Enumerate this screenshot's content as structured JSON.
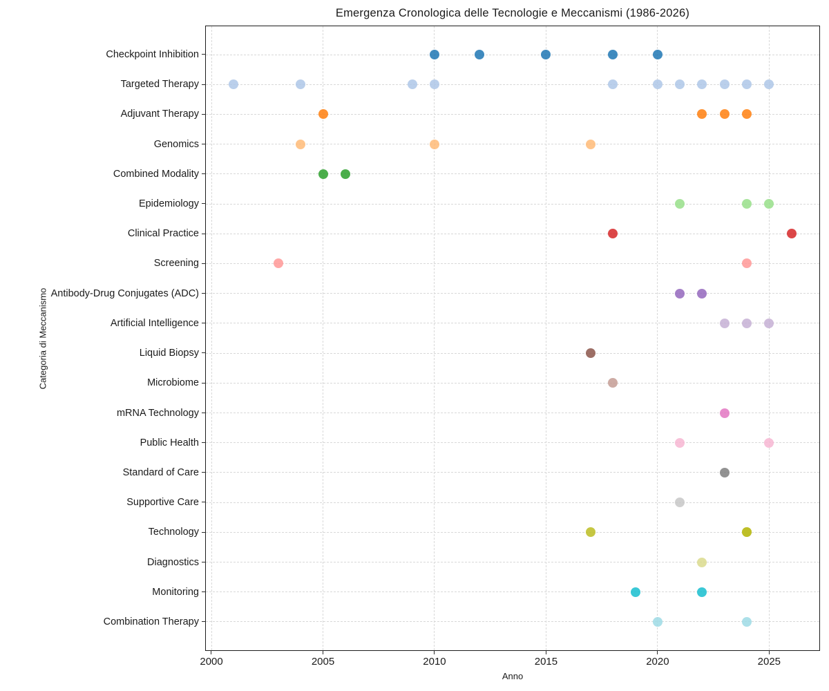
{
  "chart_data": {
    "type": "scatter",
    "title": "Emergenza Cronologica delle Tecnologie e Meccanismi (1986-2026)",
    "xlabel": "Anno",
    "ylabel": "Categoria di Meccanismo",
    "xlim": [
      1999.75,
      2027.25
    ],
    "x_ticks": [
      2000,
      2005,
      2010,
      2015,
      2020,
      2025
    ],
    "grid": true,
    "legend_position": "none",
    "categories": [
      {
        "label": "Checkpoint Inhibition",
        "color": "#1f77b4",
        "years": [
          2010,
          2012,
          2015,
          2018,
          2020
        ]
      },
      {
        "label": "Targeted Therapy",
        "color": "#aec7e8",
        "years": [
          2001,
          2004,
          2009,
          2010,
          2018,
          2020,
          2021,
          2022,
          2023,
          2024,
          2025
        ]
      },
      {
        "label": "Adjuvant Therapy",
        "color": "#ff7f0e",
        "years": [
          2005,
          2022,
          2023,
          2024
        ]
      },
      {
        "label": "Genomics",
        "color": "#ffbb78",
        "years": [
          2004,
          2010,
          2017
        ]
      },
      {
        "label": "Combined Modality",
        "color": "#2ca02c",
        "years": [
          2005,
          2006
        ]
      },
      {
        "label": "Epidemiology",
        "color": "#98df8a",
        "years": [
          2021,
          2024,
          2025
        ]
      },
      {
        "label": "Clinical Practice",
        "color": "#d62728",
        "years": [
          2018,
          2026
        ]
      },
      {
        "label": "Screening",
        "color": "#ff9896",
        "years": [
          2003,
          2024
        ]
      },
      {
        "label": "Antibody-Drug Conjugates (ADC)",
        "color": "#9467bd",
        "years": [
          2021,
          2022
        ]
      },
      {
        "label": "Artificial Intelligence",
        "color": "#c5b0d5",
        "years": [
          2023,
          2024,
          2025
        ]
      },
      {
        "label": "Liquid Biopsy",
        "color": "#8c564b",
        "years": [
          2017
        ]
      },
      {
        "label": "Microbiome",
        "color": "#c49c94",
        "years": [
          2018
        ]
      },
      {
        "label": "mRNA Technology",
        "color": "#e377c2",
        "years": [
          2023
        ]
      },
      {
        "label": "Public Health",
        "color": "#f7b6d2",
        "years": [
          2021,
          2025
        ]
      },
      {
        "label": "Standard of Care",
        "color": "#7f7f7f",
        "years": [
          2023
        ]
      },
      {
        "label": "Supportive Care",
        "color": "#c7c7c7",
        "years": [
          2021
        ]
      },
      {
        "label": "Technology",
        "color": "#bcbd22",
        "years": [
          2017,
          2024,
          2024
        ]
      },
      {
        "label": "Diagnostics",
        "color": "#dbdb8d",
        "years": [
          2022
        ]
      },
      {
        "label": "Monitoring",
        "color": "#17becf",
        "years": [
          2019,
          2022
        ]
      },
      {
        "label": "Combination Therapy",
        "color": "#9edae5",
        "years": [
          2020,
          2024
        ]
      }
    ]
  }
}
